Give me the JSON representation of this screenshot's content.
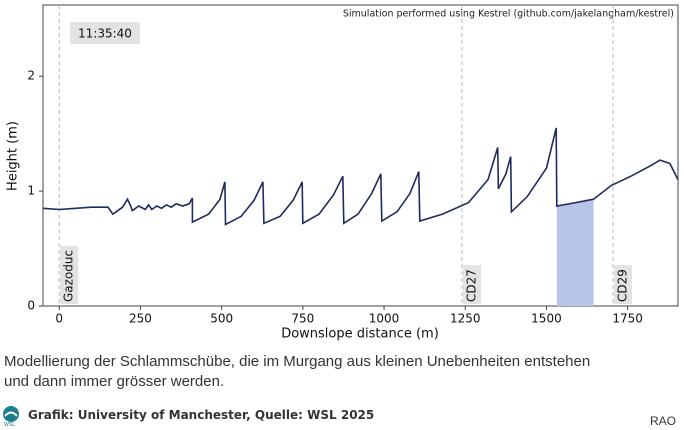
{
  "chart_data": {
    "type": "line",
    "subtitle": "Simulation performed using Kestrel (github.com/jakelangham/kestrel)",
    "timestamp": "11:35:40",
    "x_label": "Downslope distance (m)",
    "y_label": "Height (m)",
    "xlim": [
      -50,
      1905
    ],
    "ylim": [
      0,
      2.62
    ],
    "xticks": [
      0,
      250,
      500,
      750,
      1000,
      1250,
      1500,
      1750
    ],
    "yticks": [
      0,
      1,
      2
    ],
    "series": [
      {
        "name": "Height",
        "color": "#1f2a5e",
        "x": [
          -50,
          0,
          50,
          100,
          150,
          165,
          175,
          195,
          210,
          220,
          225,
          245,
          265,
          275,
          285,
          300,
          315,
          330,
          345,
          360,
          380,
          400,
          410,
          410,
          460,
          495,
          510,
          512,
          560,
          600,
          627,
          630,
          680,
          720,
          748,
          750,
          800,
          845,
          873,
          876,
          920,
          962,
          990,
          993,
          1040,
          1080,
          1107,
          1110,
          1180,
          1260,
          1320,
          1350,
          1352,
          1375,
          1390,
          1392,
          1440,
          1500,
          1530,
          1532,
          1590,
          1645,
          1700,
          1760,
          1820,
          1850,
          1880,
          1905
        ],
        "values": [
          0.85,
          0.84,
          0.85,
          0.86,
          0.86,
          0.8,
          0.82,
          0.86,
          0.93,
          0.87,
          0.83,
          0.87,
          0.84,
          0.88,
          0.84,
          0.87,
          0.85,
          0.88,
          0.86,
          0.89,
          0.87,
          0.89,
          0.94,
          0.73,
          0.8,
          0.93,
          1.08,
          0.71,
          0.78,
          0.92,
          1.08,
          0.72,
          0.78,
          0.92,
          1.08,
          0.72,
          0.8,
          0.97,
          1.13,
          0.72,
          0.8,
          0.98,
          1.15,
          0.74,
          0.82,
          0.98,
          1.17,
          0.74,
          0.8,
          0.9,
          1.1,
          1.38,
          1.02,
          1.15,
          1.3,
          0.82,
          0.95,
          1.2,
          1.55,
          0.87,
          0.9,
          0.93,
          1.05,
          1.13,
          1.22,
          1.27,
          1.24,
          1.1
        ]
      }
    ],
    "highlight": {
      "x": [
        1532,
        1645
      ],
      "color": "#b8c3ea"
    },
    "vlines": [
      {
        "x": 0,
        "label": "Gazoduc"
      },
      {
        "x": 1240,
        "label": "CD27"
      },
      {
        "x": 1705,
        "label": "CD29"
      }
    ]
  },
  "caption": [
    "Modellierung der Schlammschübe, die im Murgang aus kleinen Unebenheiten entstehen",
    "und dann immer grösser werden."
  ],
  "credit": "Grafik: University of Manchester, Quelle: WSL 2025",
  "logo": "WSL",
  "author": "RAO"
}
